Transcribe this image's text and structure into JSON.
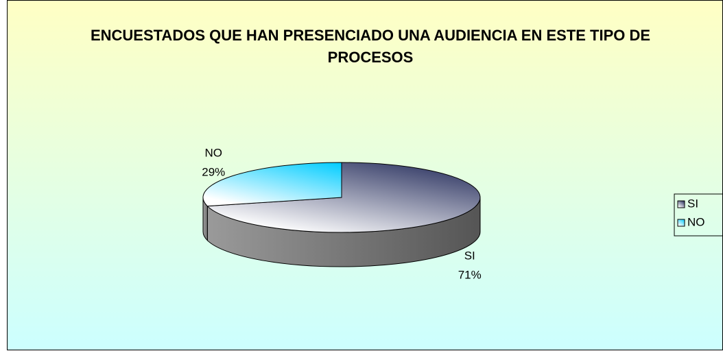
{
  "chart_data": {
    "type": "pie",
    "title": "ENCUESTADOS QUE HAN PRESENCIADO UNA AUDIENCIA EN ESTE TIPO DE PROCESOS",
    "categories": [
      "SI",
      "NO"
    ],
    "values": [
      71,
      29
    ],
    "value_labels": [
      "71%",
      "29%"
    ],
    "colors": [
      "#1f2757",
      "#00ccff"
    ],
    "legend": "right"
  }
}
